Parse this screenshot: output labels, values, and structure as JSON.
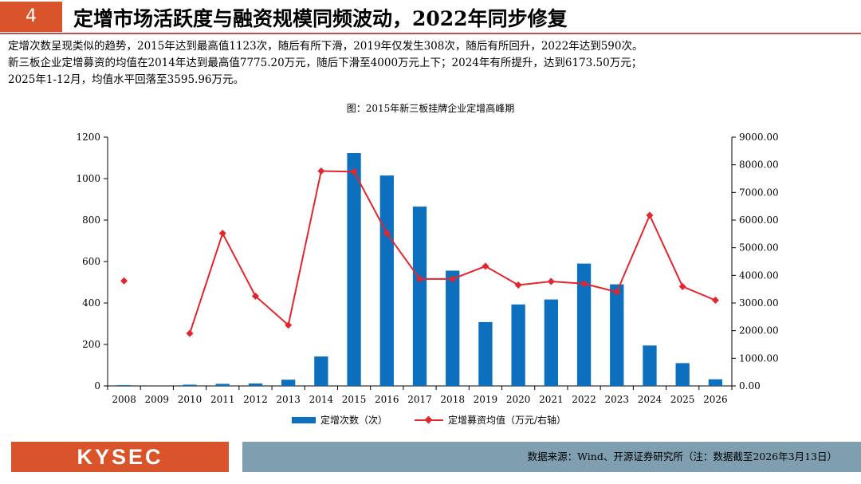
{
  "header": {
    "number": "4",
    "title": "定增市场活跃度与融资规模同频波动，2022年同步修复"
  },
  "description": [
    "定增次数呈现类似的趋势，2015年达到最高值1123次，随后有所下滑，2019年仅发生308次，随后有所回升，2022年达到590次。",
    "新三板企业定增募资的均值在2014年达到最高值7775.20万元，随后下滑至4000万元上下；2024年有所提升，达到6173.50万元；",
    "2025年1-12月，均值水平回落至3595.96万元。"
  ],
  "chart_data": {
    "type": "bar+line",
    "title": "图：2015年新三板挂牌企业定增高峰期",
    "categories": [
      "2008",
      "2009",
      "2010",
      "2011",
      "2012",
      "2013",
      "2014",
      "2015",
      "2016",
      "2017",
      "2018",
      "2019",
      "2020",
      "2021",
      "2022",
      "2023",
      "2024",
      "2025",
      "2026"
    ],
    "series": [
      {
        "name": "定增次数（次）",
        "type": "bar",
        "axis": "left",
        "color": "#0c70bf",
        "values": [
          4,
          0,
          6,
          10,
          12,
          30,
          142,
          1123,
          1015,
          865,
          556,
          308,
          393,
          417,
          590,
          490,
          195,
          110,
          32
        ]
      },
      {
        "name": "定增募资均值（万元/右轴）",
        "type": "line",
        "axis": "right",
        "color": "#e3262e",
        "values": [
          3800,
          null,
          1900,
          5520,
          3250,
          2200,
          7775.2,
          7750,
          5520,
          3870,
          3870,
          4330,
          3650,
          3780,
          3700,
          3400,
          6173.5,
          3595.96,
          3100
        ]
      }
    ],
    "left_axis": {
      "min": 0,
      "max": 1200,
      "ticks": [
        "0",
        "200",
        "400",
        "600",
        "800",
        "1000",
        "1200"
      ]
    },
    "right_axis": {
      "min": 0,
      "max": 9000,
      "ticks": [
        "0.00",
        "1000.00",
        "2000.00",
        "3000.00",
        "4000.00",
        "5000.00",
        "6000.00",
        "7000.00",
        "8000.00",
        "9000.00"
      ]
    },
    "legend": [
      "定增次数（次）",
      "定增募资均值（万元/右轴）"
    ],
    "legend_position": "bottom"
  },
  "footer": {
    "logo": "KYSEC",
    "source": "数据来源：Wind、开源证券研究所（注：数据截至2026年3月13日）"
  }
}
